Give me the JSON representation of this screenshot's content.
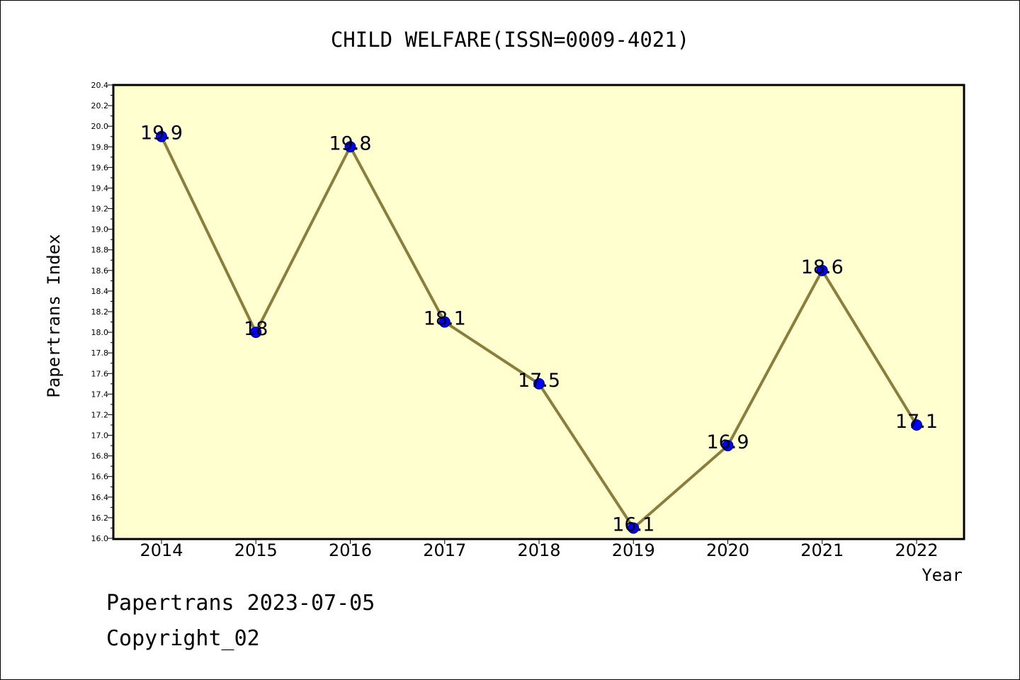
{
  "chart_data": {
    "type": "line",
    "title": "CHILD WELFARE(ISSN=0009-4021)",
    "xlabel": "Year",
    "ylabel": "Papertrans Index",
    "categories": [
      "2014",
      "2015",
      "2016",
      "2017",
      "2018",
      "2019",
      "2020",
      "2021",
      "2022"
    ],
    "values": [
      19.9,
      18.0,
      19.8,
      18.1,
      17.5,
      16.1,
      16.9,
      18.6,
      17.1
    ],
    "data_labels": [
      "19.9",
      "18",
      "19.8",
      "18.1",
      "17.5",
      "16.1",
      "16.9",
      "18.6",
      "17.1"
    ],
    "ylim": [
      16.0,
      20.4
    ],
    "yticks": [
      "16.0",
      "16.2",
      "16.4",
      "16.6",
      "16.8",
      "17.0",
      "17.2",
      "17.4",
      "17.6",
      "17.8",
      "18.0",
      "18.2",
      "18.4",
      "18.6",
      "18.8",
      "19.0",
      "19.2",
      "19.4",
      "19.6",
      "19.8",
      "20.0",
      "20.2",
      "20.4"
    ],
    "grid": false,
    "colors": {
      "plot_background": "#ffffd0",
      "line": "#8b7d3a",
      "marker": "#0000ff"
    }
  },
  "footer": {
    "line1": "Papertrans 2023-07-05",
    "line2": "Copyright_02"
  }
}
